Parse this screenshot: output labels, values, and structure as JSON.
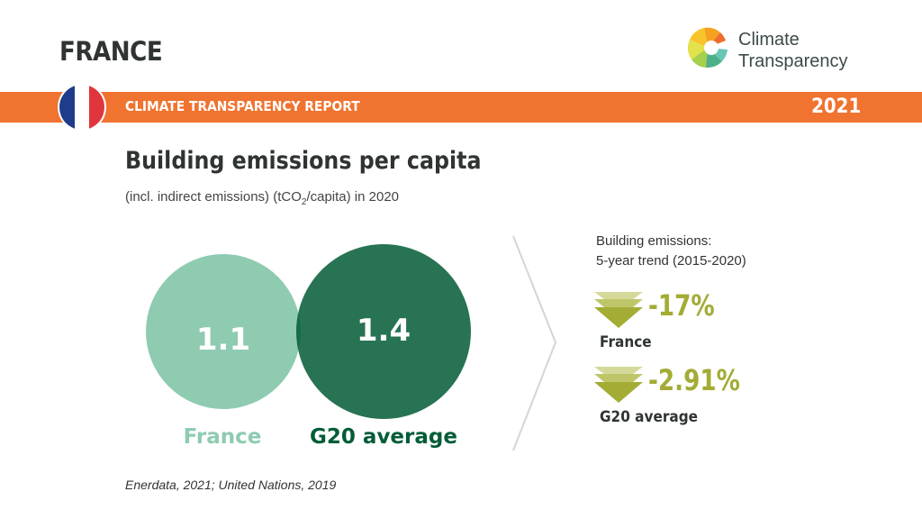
{
  "header": {
    "country": "FRANCE",
    "report_title": "CLIMATE TRANSPARENCY REPORT",
    "year": "2021",
    "logo": {
      "line1": "Climate",
      "line2": "Transparency",
      "icon": "climate-transparency-logo"
    },
    "flag": "france-flag",
    "banner_color": "#f07330"
  },
  "chart_data": {
    "type": "bubble",
    "title": "Building emissions per capita",
    "subtitle_parts": [
      "(incl. indirect emissions) (tCO",
      "2",
      "/capita) in 2020"
    ],
    "series": [
      {
        "name": "France",
        "value": 1.1,
        "label": "1.1",
        "color": "#8ecbb1"
      },
      {
        "name": "G20 average",
        "value": 1.4,
        "label": "1.4",
        "color": "#035c37"
      }
    ]
  },
  "trend": {
    "heading_line1": "Building emissions:",
    "heading_line2": "5-year trend (2015-2020)",
    "items": [
      {
        "name": "France",
        "value": "-17%",
        "direction": "down"
      },
      {
        "name": "G20 average",
        "value": "-2.91%",
        "direction": "down"
      }
    ],
    "color": "#a3ac35"
  },
  "source": "Enerdata, 2021; United Nations, 2019"
}
